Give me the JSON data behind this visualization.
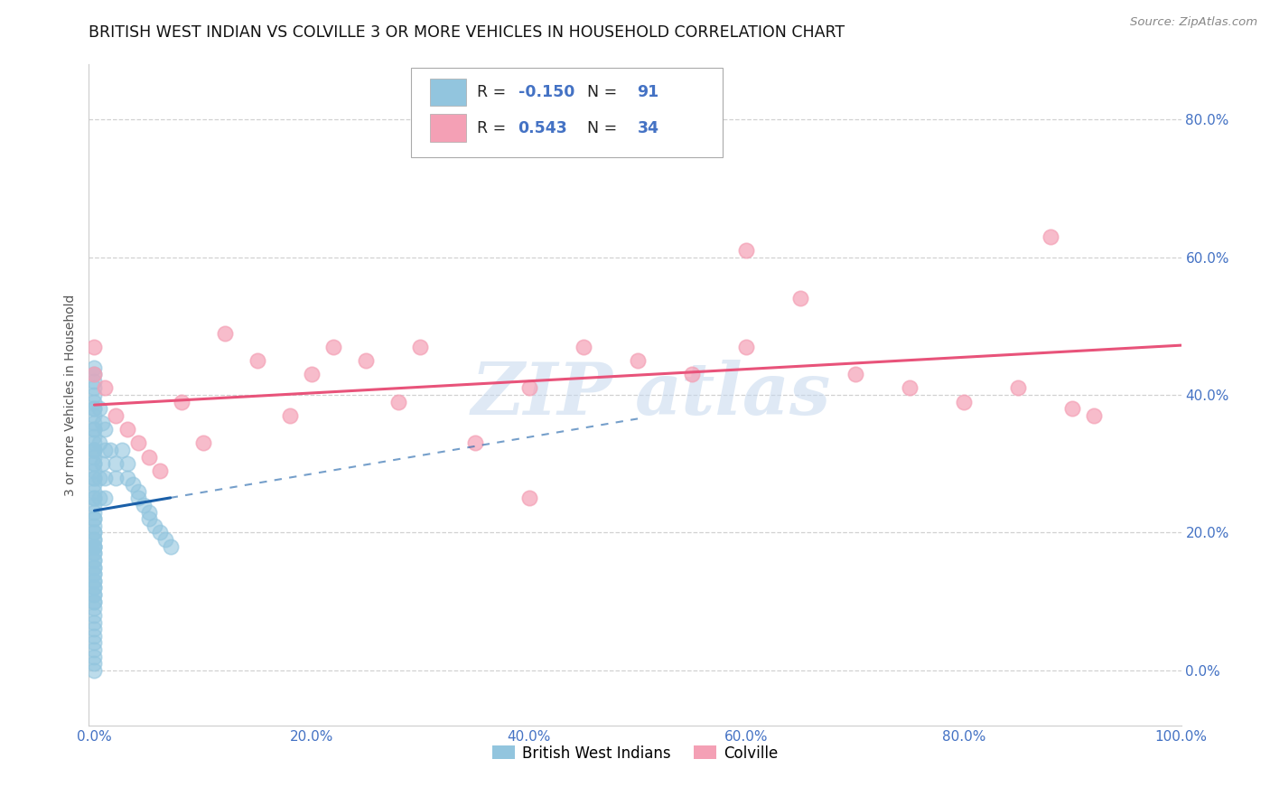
{
  "title": "BRITISH WEST INDIAN VS COLVILLE 3 OR MORE VEHICLES IN HOUSEHOLD CORRELATION CHART",
  "source": "Source: ZipAtlas.com",
  "ylabel": "3 or more Vehicles in Household",
  "watermark_zip": "ZIP",
  "watermark_atlas": "atlas",
  "blue_R": -0.15,
  "blue_N": 91,
  "pink_R": 0.543,
  "pink_N": 34,
  "blue_color": "#92c5de",
  "pink_color": "#f4a0b5",
  "blue_line_color": "#1a5fa8",
  "pink_line_color": "#e8537a",
  "blue_dot_edge": "#6baed6",
  "pink_dot_edge": "#e87ca0",
  "xlim": [
    0.0,
    1.0
  ],
  "ylim": [
    -0.08,
    0.88
  ],
  "xticks": [
    0.0,
    0.2,
    0.4,
    0.6,
    0.8,
    1.0
  ],
  "xticklabels": [
    "0.0%",
    "20.0%",
    "40.0%",
    "60.0%",
    "80.0%",
    "100.0%"
  ],
  "yticks": [
    0.0,
    0.2,
    0.4,
    0.6,
    0.8
  ],
  "yticklabels": [
    "0.0%",
    "20.0%",
    "40.0%",
    "60.0%",
    "80.0%"
  ],
  "legend_labels": [
    "British West Indians",
    "Colville"
  ],
  "background_color": "#ffffff",
  "grid_color": "#cccccc",
  "tick_color": "#4472c4",
  "title_fontsize": 12.5,
  "axis_fontsize": 10,
  "tick_fontsize": 11,
  "blue_x": [
    0.0,
    0.0,
    0.0,
    0.0,
    0.0,
    0.0,
    0.0,
    0.0,
    0.0,
    0.0,
    0.0,
    0.0,
    0.0,
    0.0,
    0.0,
    0.0,
    0.0,
    0.0,
    0.0,
    0.0,
    0.0,
    0.0,
    0.0,
    0.0,
    0.0,
    0.0,
    0.0,
    0.0,
    0.0,
    0.0,
    0.0,
    0.0,
    0.0,
    0.0,
    0.0,
    0.0,
    0.0,
    0.0,
    0.0,
    0.0,
    0.0,
    0.0,
    0.0,
    0.0,
    0.0,
    0.0,
    0.0,
    0.0,
    0.0,
    0.0,
    0.0,
    0.0,
    0.0,
    0.0,
    0.0,
    0.0,
    0.0,
    0.0,
    0.0,
    0.0,
    0.0,
    0.0,
    0.0,
    0.0,
    0.0,
    0.005,
    0.005,
    0.005,
    0.005,
    0.007,
    0.007,
    0.01,
    0.01,
    0.01,
    0.01,
    0.015,
    0.02,
    0.02,
    0.025,
    0.03,
    0.03,
    0.035,
    0.04,
    0.04,
    0.045,
    0.05,
    0.05,
    0.055,
    0.06,
    0.065,
    0.07
  ],
  "blue_y": [
    0.21,
    0.19,
    0.22,
    0.25,
    0.28,
    0.18,
    0.17,
    0.2,
    0.23,
    0.15,
    0.13,
    0.12,
    0.1,
    0.09,
    0.08,
    0.07,
    0.06,
    0.05,
    0.04,
    0.03,
    0.02,
    0.01,
    0.0,
    0.3,
    0.32,
    0.35,
    0.27,
    0.29,
    0.31,
    0.33,
    0.34,
    0.36,
    0.37,
    0.38,
    0.24,
    0.26,
    0.16,
    0.14,
    0.11,
    0.39,
    0.4,
    0.19,
    0.43,
    0.44,
    0.15,
    0.41,
    0.42,
    0.16,
    0.17,
    0.18,
    0.13,
    0.14,
    0.12,
    0.11,
    0.1,
    0.38,
    0.35,
    0.32,
    0.28,
    0.32,
    0.3,
    0.25,
    0.22,
    0.2,
    0.18,
    0.38,
    0.33,
    0.28,
    0.25,
    0.36,
    0.3,
    0.35,
    0.32,
    0.28,
    0.25,
    0.32,
    0.3,
    0.28,
    0.32,
    0.3,
    0.28,
    0.27,
    0.26,
    0.25,
    0.24,
    0.23,
    0.22,
    0.21,
    0.2,
    0.19,
    0.18
  ],
  "pink_x": [
    0.0,
    0.0,
    0.01,
    0.02,
    0.03,
    0.04,
    0.05,
    0.06,
    0.08,
    0.1,
    0.12,
    0.15,
    0.18,
    0.2,
    0.22,
    0.25,
    0.28,
    0.3,
    0.35,
    0.4,
    0.45,
    0.5,
    0.55,
    0.6,
    0.65,
    0.7,
    0.75,
    0.8,
    0.85,
    0.88,
    0.9,
    0.92,
    0.6,
    0.4
  ],
  "pink_y": [
    0.47,
    0.43,
    0.41,
    0.37,
    0.35,
    0.33,
    0.31,
    0.29,
    0.39,
    0.33,
    0.49,
    0.45,
    0.37,
    0.43,
    0.47,
    0.45,
    0.39,
    0.47,
    0.33,
    0.41,
    0.47,
    0.45,
    0.43,
    0.61,
    0.54,
    0.43,
    0.41,
    0.39,
    0.41,
    0.63,
    0.38,
    0.37,
    0.47,
    0.25
  ]
}
